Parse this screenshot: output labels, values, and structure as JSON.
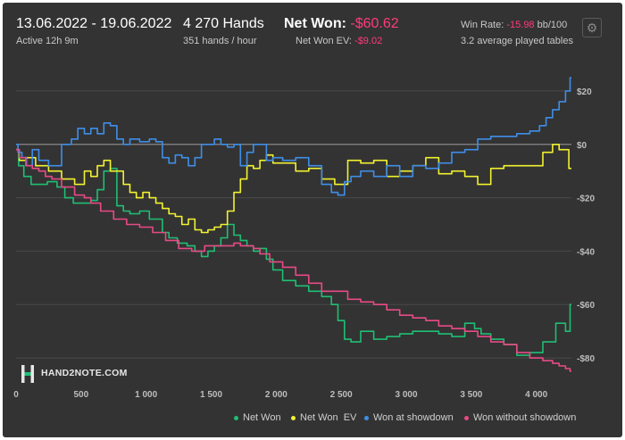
{
  "header": {
    "date_range": "13.06.2022 - 19.06.2022",
    "active": "Active 12h 9m",
    "hands": "4 270 Hands",
    "hands_rate": "351 hands / hour",
    "net_won_label": "Net Won: ",
    "net_won_value": "-$60.62",
    "net_won_ev_label": "Net Won  EV: ",
    "net_won_ev_value": "-$9.02",
    "win_rate_label": "Win Rate: ",
    "win_rate_value": "-15.98",
    "win_rate_unit": " bb/100",
    "tables": "3.2 average played tables",
    "settings_icon": "gear-icon"
  },
  "logo": {
    "text": "HAND2NOTE.COM"
  },
  "colors": {
    "background": "#333333",
    "net_won": "#1fbf74",
    "net_won_ev": "#f2f230",
    "won_at_showdown": "#3f8ee8",
    "won_without_showdown": "#e84a86",
    "negative_text": "#ff3b7a"
  },
  "chart_data": {
    "type": "line",
    "xlabel": "",
    "ylabel": "",
    "xlim": [
      0,
      4270
    ],
    "ylim": [
      -88,
      28
    ],
    "x_ticks": [
      0,
      500,
      1000,
      1500,
      2000,
      2500,
      3000,
      3500,
      4000
    ],
    "x_tick_labels": [
      "0",
      "500",
      "1 000",
      "1 500",
      "2 000",
      "2 500",
      "3 000",
      "3 500",
      "4 000"
    ],
    "y_ticks": [
      20,
      0,
      -20,
      -40,
      -60,
      -80
    ],
    "y_tick_labels": [
      "$20",
      "$0",
      "-$20",
      "-$40",
      "-$60",
      "-$80"
    ],
    "legend_position": "bottom-right",
    "series": [
      {
        "name": "Net Won",
        "key": "net_won",
        "x": [
          0,
          40,
          80,
          150,
          200,
          280,
          350,
          400,
          480,
          550,
          600,
          650,
          700,
          750,
          800,
          850,
          900,
          1000,
          1050,
          1100,
          1150,
          1200,
          1280,
          1350,
          1400,
          1450,
          1500,
          1550,
          1600,
          1650,
          1700,
          1750,
          1800,
          1850,
          1900,
          1950,
          2000,
          2100,
          2200,
          2300,
          2400,
          2450,
          2500,
          2550,
          2600,
          2700,
          2800,
          2900,
          3000,
          3100,
          3200,
          3300,
          3400,
          3500,
          3550,
          3600,
          3700,
          3800,
          3900,
          4000,
          4100,
          4200,
          4250,
          4270
        ],
        "y": [
          -2,
          -8,
          -12,
          -15,
          -15,
          -14,
          -16,
          -20,
          -22,
          -22,
          -21,
          -17,
          -10,
          -9,
          -23,
          -25,
          -26,
          -25,
          -28,
          -28,
          -33,
          -35,
          -37,
          -38,
          -40,
          -42,
          -40,
          -38,
          -35,
          -30,
          -34,
          -36,
          -38,
          -40,
          -39,
          -43,
          -47,
          -51,
          -53,
          -55,
          -57,
          -60,
          -66,
          -73,
          -74,
          -70,
          -73,
          -72,
          -71,
          -70,
          -70,
          -71,
          -72,
          -67,
          -69,
          -71,
          -73,
          -75,
          -79,
          -78,
          -74,
          -67,
          -70,
          -60
        ]
      },
      {
        "name": "Net Won  EV",
        "key": "net_won_ev",
        "x": [
          0,
          50,
          100,
          200,
          300,
          400,
          500,
          550,
          600,
          650,
          700,
          750,
          800,
          850,
          900,
          950,
          1000,
          1050,
          1100,
          1150,
          1200,
          1250,
          1300,
          1350,
          1400,
          1450,
          1500,
          1550,
          1600,
          1650,
          1700,
          1750,
          1800,
          1850,
          1900,
          1950,
          2000,
          2100,
          2200,
          2300,
          2400,
          2500,
          2600,
          2700,
          2800,
          2900,
          3000,
          3100,
          3200,
          3300,
          3400,
          3500,
          3600,
          3700,
          3800,
          3900,
          4000,
          4100,
          4150,
          4200,
          4230,
          4270
        ],
        "y": [
          -2,
          -6,
          -5,
          -8,
          -10,
          -13,
          -15,
          -10,
          -12,
          -8,
          -6,
          -10,
          -10,
          -15,
          -18,
          -20,
          -18,
          -20,
          -22,
          -24,
          -26,
          -27,
          -30,
          -28,
          -32,
          -33,
          -32,
          -31,
          -30,
          -25,
          -18,
          -13,
          -8,
          -9,
          -6,
          -4,
          -7,
          -7,
          -10,
          -9,
          -13,
          -15,
          -6,
          -7,
          -6,
          -12,
          -10,
          -8,
          -5,
          -11,
          -10,
          -12,
          -15,
          -9,
          -8,
          -8,
          -8,
          -3,
          0,
          -2,
          -2,
          -9
        ]
      },
      {
        "name": "Won at showdown",
        "key": "won_at_showdown",
        "x": [
          0,
          30,
          60,
          100,
          150,
          200,
          300,
          400,
          450,
          500,
          550,
          600,
          650,
          700,
          750,
          800,
          850,
          900,
          1000,
          1050,
          1100,
          1150,
          1200,
          1250,
          1300,
          1350,
          1400,
          1450,
          1500,
          1550,
          1600,
          1650,
          1700,
          1750,
          1800,
          1850,
          1900,
          1950,
          2000,
          2100,
          2200,
          2300,
          2400,
          2450,
          2500,
          2550,
          2600,
          2700,
          2800,
          2900,
          3000,
          3100,
          3200,
          3300,
          3400,
          3500,
          3600,
          3700,
          3800,
          3900,
          4000,
          4050,
          4100,
          4150,
          4200,
          4250,
          4270
        ],
        "y": [
          0,
          -3,
          -5,
          -8,
          -2,
          -6,
          -8,
          0,
          2,
          6,
          4,
          6,
          4,
          8,
          7,
          2,
          0,
          2,
          1,
          2,
          1,
          -5,
          -7,
          -4,
          -5,
          -8,
          -5,
          0,
          0,
          2,
          0,
          -1,
          0,
          -8,
          -3,
          0,
          0,
          -6,
          -5,
          -6,
          -5,
          -8,
          -15,
          -18,
          -19,
          -14,
          -12,
          -10,
          -12,
          -8,
          -12,
          -8,
          -9,
          -7,
          -3,
          -2,
          2,
          3,
          3,
          4,
          5,
          7,
          10,
          13,
          16,
          20,
          25
        ]
      },
      {
        "name": "Won without showdown",
        "key": "won_without_showdown",
        "x": [
          0,
          50,
          100,
          150,
          200,
          250,
          300,
          400,
          500,
          550,
          600,
          700,
          800,
          900,
          1000,
          1100,
          1200,
          1300,
          1400,
          1500,
          1600,
          1650,
          1700,
          1750,
          1800,
          1850,
          1900,
          2000,
          2100,
          2200,
          2300,
          2400,
          2500,
          2600,
          2700,
          2800,
          2900,
          3000,
          3100,
          3200,
          3300,
          3400,
          3500,
          3600,
          3700,
          3800,
          3900,
          4000,
          4100,
          4150,
          4200,
          4250,
          4270
        ],
        "y": [
          -2,
          -5,
          -8,
          -9,
          -10,
          -12,
          -13,
          -16,
          -19,
          -20,
          -22,
          -25,
          -28,
          -30,
          -31,
          -33,
          -36,
          -39,
          -40,
          -38,
          -38,
          -38,
          -37,
          -38,
          -38,
          -39,
          -41,
          -44,
          -46,
          -49,
          -52,
          -55,
          -55,
          -58,
          -59,
          -60,
          -62,
          -64,
          -65,
          -66,
          -68,
          -69,
          -70,
          -72,
          -74,
          -75,
          -78,
          -80,
          -81,
          -82,
          -83,
          -84,
          -85
        ]
      }
    ]
  }
}
